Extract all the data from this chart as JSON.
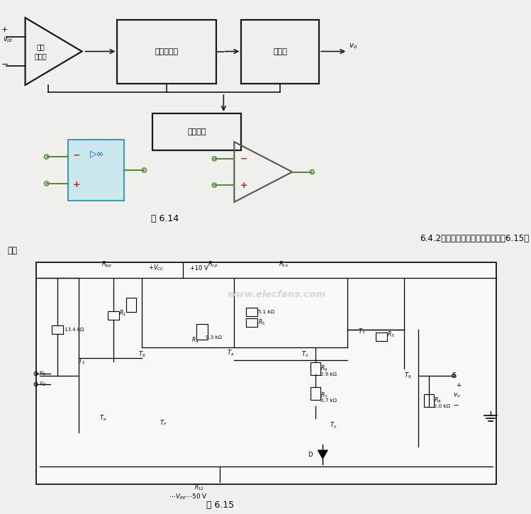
{
  "page_bg": "#f0f0ec",
  "lc": "#1a1a1a",
  "bc": "#1a1a1a",
  "green": "#5a8a3a",
  "cyan_face": "#c8e8ec",
  "cyan_edge": "#4499aa",
  "red": "#cc2222",
  "blue": "#2244cc",
  "gray_wm": "#bbbbbb",
  "block1": "差分\n输入级",
  "block2": "电压放大级",
  "block3": "输出级",
  "block4": "偏置电路",
  "fig14": "图 6.14",
  "fig15": "图 6.15",
  "title_right": "6.4.2、一个简单的集成运放（如图6.15所",
  "title_left": "示）",
  "watermark": "www.elecfans.com",
  "vcc_label": "+$V_{CC}$  +10 V",
  "vee_label": "$\\cdots V_{EE}\\cdots$50 V"
}
